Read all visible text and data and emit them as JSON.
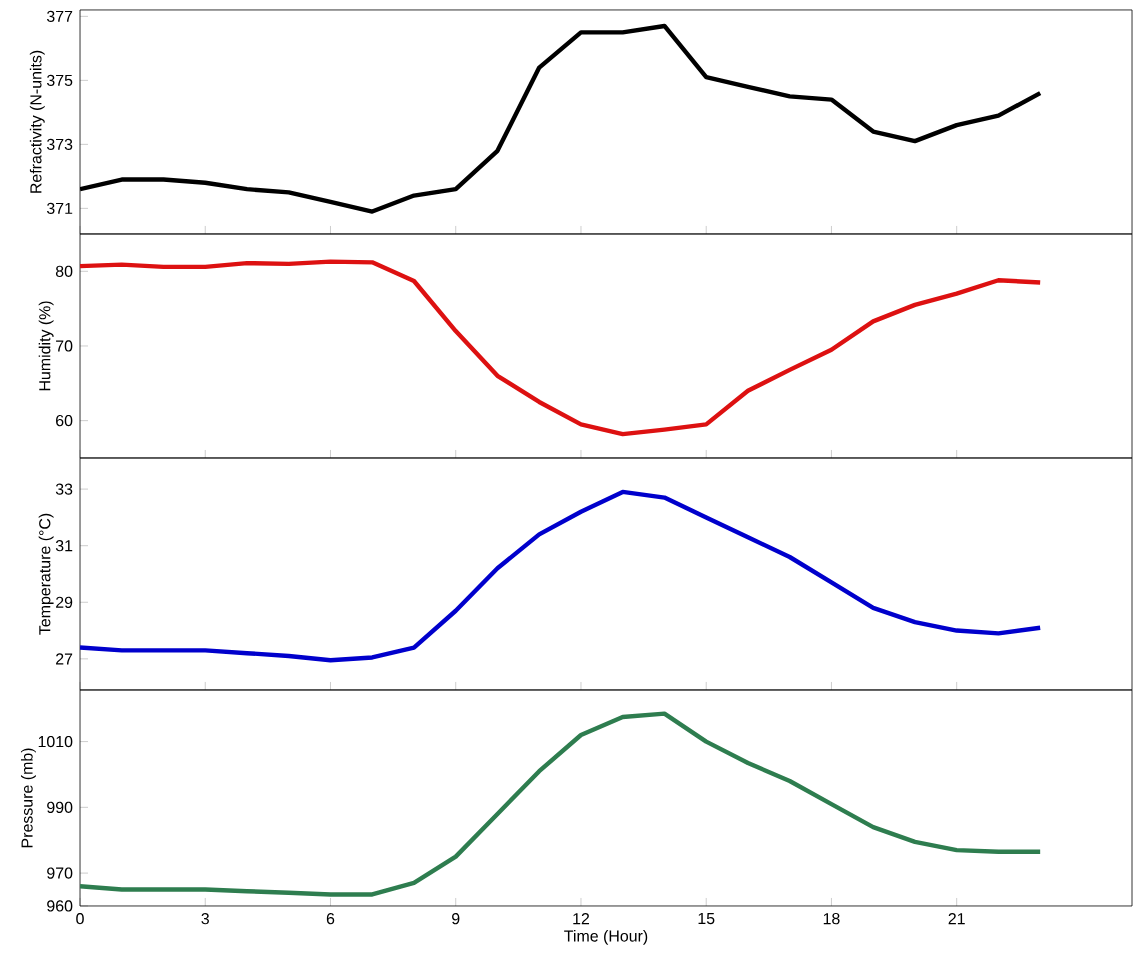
{
  "chart_data": [
    {
      "type": "line",
      "ylabel": "Refractivity (N-units)",
      "x": [
        0,
        1,
        2,
        3,
        4,
        5,
        6,
        7,
        8,
        9,
        10,
        11,
        12,
        13,
        14,
        15,
        16,
        17,
        18,
        19,
        20,
        21,
        22,
        23
      ],
      "xlim": [
        0,
        25.2
      ],
      "xticks": [
        0,
        3,
        6,
        9,
        12,
        15,
        18,
        21
      ],
      "ylim": [
        370.2,
        377.2
      ],
      "yticks": [
        371,
        373,
        375,
        377
      ],
      "tick_labels": "y",
      "grid": false,
      "series": [
        {
          "color": "#000000",
          "values": [
            371.6,
            371.9,
            371.9,
            371.8,
            371.6,
            371.5,
            371.2,
            370.9,
            371.4,
            371.6,
            372.8,
            375.4,
            376.5,
            376.5,
            376.7,
            375.1,
            374.8,
            374.5,
            374.4,
            373.4,
            373.1,
            373.6,
            373.9,
            374.6
          ]
        }
      ]
    },
    {
      "type": "line",
      "ylabel": "Humidity (%)",
      "x": [
        0,
        1,
        2,
        3,
        4,
        5,
        6,
        7,
        8,
        9,
        10,
        11,
        12,
        13,
        14,
        15,
        16,
        17,
        18,
        19,
        20,
        21,
        22,
        23
      ],
      "xlim": [
        0,
        25.2
      ],
      "xticks": [
        0,
        3,
        6,
        9,
        12,
        15,
        18,
        21
      ],
      "ylim": [
        55,
        85
      ],
      "yticks": [
        60,
        70,
        80
      ],
      "tick_labels": "y",
      "grid": false,
      "series": [
        {
          "color": "#dd1111",
          "values": [
            80.7,
            80.9,
            80.6,
            80.6,
            81.1,
            81.0,
            81.3,
            81.2,
            78.7,
            72,
            66,
            62.5,
            59.5,
            58.2,
            58.8,
            59.5,
            64,
            66.8,
            69.5,
            73.3,
            75.5,
            77,
            78.8,
            78.5
          ]
        }
      ]
    },
    {
      "type": "line",
      "ylabel": "Temperature (°C)",
      "x": [
        0,
        1,
        2,
        3,
        4,
        5,
        6,
        7,
        8,
        9,
        10,
        11,
        12,
        13,
        14,
        15,
        16,
        17,
        18,
        19,
        20,
        21,
        22,
        23
      ],
      "xlim": [
        0,
        25.2
      ],
      "xticks": [
        0,
        3,
        6,
        9,
        12,
        15,
        18,
        21
      ],
      "ylim": [
        25.9,
        34.1
      ],
      "yticks": [
        27,
        29,
        31,
        33
      ],
      "tick_labels": "y",
      "grid": false,
      "series": [
        {
          "color": "#0000cc",
          "values": [
            27.4,
            27.3,
            27.3,
            27.3,
            27.2,
            27.1,
            26.95,
            27.05,
            27.4,
            28.7,
            30.2,
            31.4,
            32.2,
            32.9,
            32.7,
            32.0,
            31.3,
            30.6,
            29.7,
            28.8,
            28.3,
            28.0,
            27.9,
            28.1
          ]
        }
      ]
    },
    {
      "type": "line",
      "ylabel": "Pressure (mb)",
      "xlabel": "Time (Hour)",
      "x": [
        0,
        1,
        2,
        3,
        4,
        5,
        6,
        7,
        8,
        9,
        10,
        11,
        12,
        13,
        14,
        15,
        16,
        17,
        18,
        19,
        20,
        21,
        22,
        23
      ],
      "xlim": [
        0,
        25.2
      ],
      "xticks": [
        0,
        3,
        6,
        9,
        12,
        15,
        18,
        21
      ],
      "ylim": [
        960,
        1025.7
      ],
      "yticks": [
        960,
        970,
        990,
        1010
      ],
      "grid": false,
      "series": [
        {
          "color": "#2e7d4f",
          "values": [
            966,
            965,
            965,
            965,
            964.5,
            964,
            963.5,
            963.5,
            967,
            975,
            988,
            1001,
            1012,
            1017.5,
            1018.5,
            1010,
            1003.5,
            998,
            991,
            984,
            979.5,
            977,
            976.5,
            976.5
          ]
        }
      ]
    }
  ]
}
